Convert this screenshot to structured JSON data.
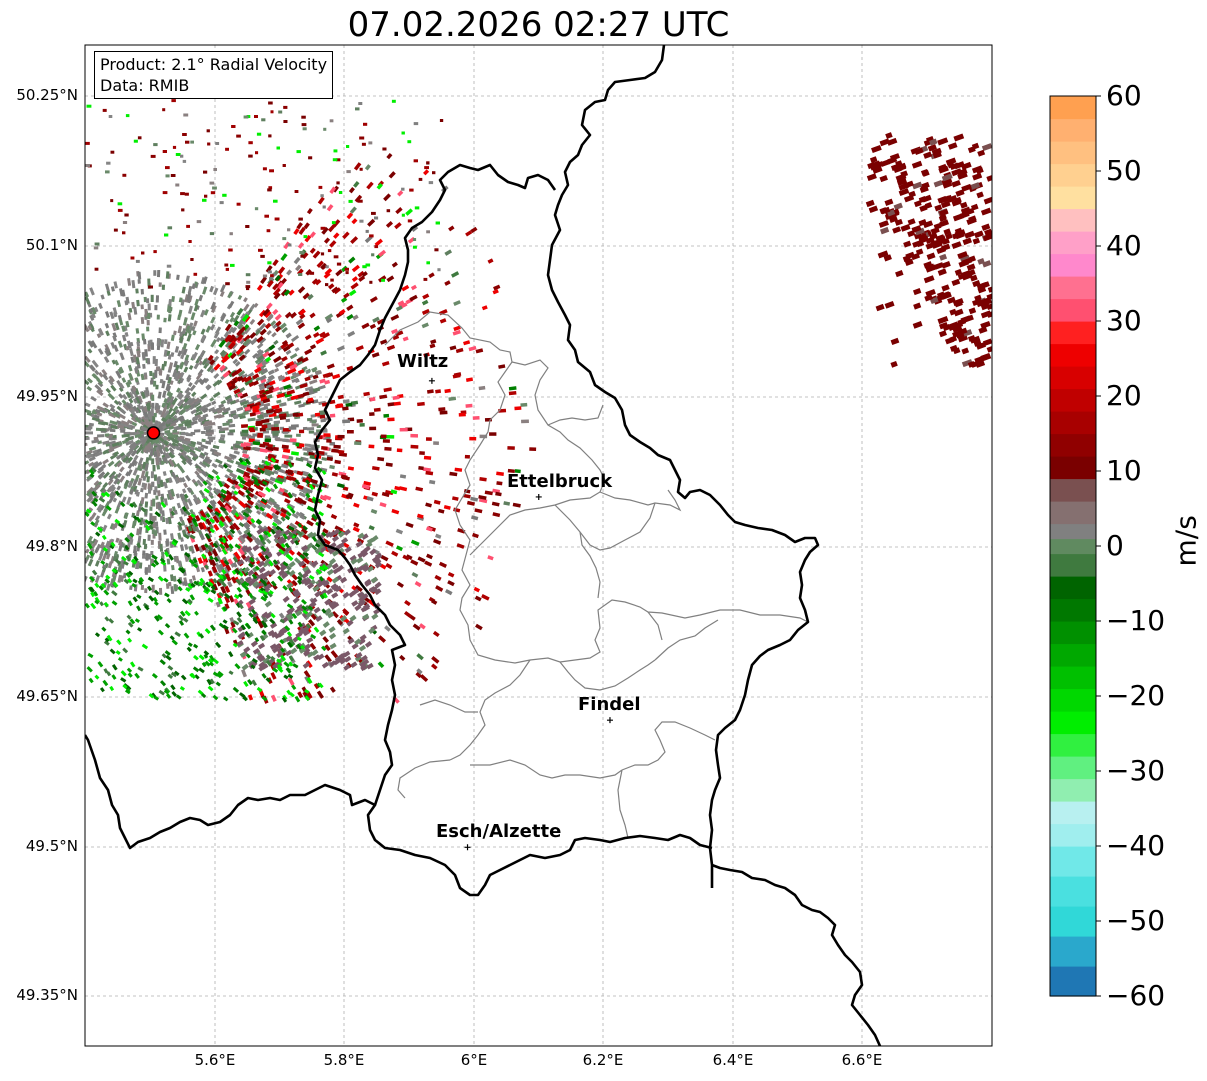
{
  "title": "07.02.2026 02:27 UTC",
  "info_box": {
    "product": "Product: 2.1° Radial Velocity",
    "data": "Data: RMIB"
  },
  "latitude_ticks": [
    "50.25°N",
    "50.1°N",
    "49.95°N",
    "49.8°N",
    "49.65°N",
    "49.5°N",
    "49.35°N"
  ],
  "longitude_ticks": [
    "5.6°E",
    "5.8°E",
    "6°E",
    "6.2°E",
    "6.4°E",
    "6.6°E"
  ],
  "cities": [
    {
      "name": "Wiltz",
      "lon": 5.935,
      "lat": 49.966
    },
    {
      "name": "Ettelbruck",
      "lon": 6.1,
      "lat": 49.85
    },
    {
      "name": "Findel",
      "lon": 6.21,
      "lat": 49.627
    },
    {
      "name": "Esch/Alzette",
      "lon": 5.99,
      "lat": 49.5
    }
  ],
  "radar_site": {
    "lon": 5.505,
    "lat": 49.914
  },
  "colorbar": {
    "label": "m/s",
    "min": -60,
    "max": 60,
    "ticks": [
      "60",
      "50",
      "40",
      "30",
      "20",
      "10",
      "0",
      "−10",
      "−20",
      "−30",
      "−40",
      "−50",
      "−60"
    ]
  },
  "colors": {
    "approaching_dark": "#006400",
    "approaching_bright": "#00ee00",
    "zero": "#7f7f7f",
    "receding_dark": "#7a0000",
    "receding_bright": "#ee0000",
    "pink": "#ff88cc",
    "cyan": "#30d8d8",
    "orange": "#ffa050"
  }
}
